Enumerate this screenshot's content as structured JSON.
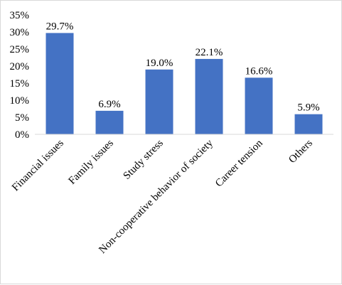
{
  "chart_data": {
    "type": "bar",
    "title": "",
    "xlabel": "",
    "ylabel": "",
    "categories": [
      "Financial issues",
      "Family issues",
      "Study stress",
      "Non-cooperative behavior of society",
      "Career tension",
      "Others"
    ],
    "values": [
      29.7,
      6.9,
      19.0,
      22.1,
      16.6,
      5.9
    ],
    "data_labels": [
      "29.7%",
      "6.9%",
      "19.0%",
      "22.1%",
      "16.6%",
      "5.9%"
    ],
    "ylim": [
      0,
      35
    ],
    "yticks": [
      0,
      5,
      10,
      15,
      20,
      25,
      30,
      35
    ],
    "ytick_labels": [
      "0%",
      "5%",
      "10%",
      "15%",
      "20%",
      "25%",
      "30%",
      "35%"
    ],
    "grid": false,
    "legend": "none",
    "bar_color": "#4472c4",
    "axis_color": "#d9d9d9"
  }
}
